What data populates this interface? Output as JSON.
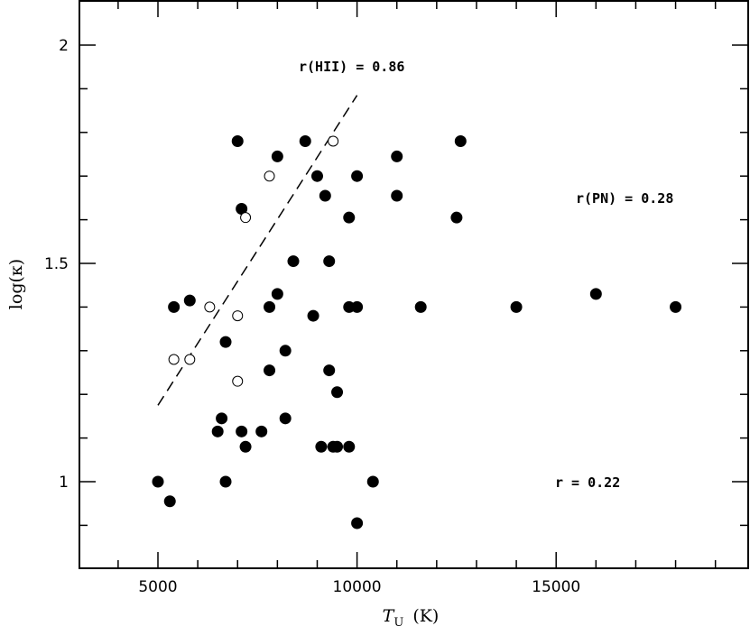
{
  "chart_data": {
    "type": "scatter",
    "xlabel_main": "T",
    "xlabel_sub": "U",
    "xlabel_unit": "(K)",
    "ylabel": "log(κ)",
    "xlim": [
      3000,
      20000
    ],
    "ylim": [
      0.8,
      2.1
    ],
    "x_ticks": [
      {
        "value": 5000,
        "label": "5000"
      },
      {
        "value": 10000,
        "label": "10000"
      },
      {
        "value": 15000,
        "label": "15000"
      }
    ],
    "y_ticks": [
      {
        "value": 1,
        "label": "1"
      },
      {
        "value": 1.5,
        "label": "1.5"
      },
      {
        "value": 2,
        "label": "2"
      }
    ],
    "annotations": {
      "r_hii": "r(HII) = 0.86",
      "r_pn": "r(PN) = 0.28",
      "r_all": "r = 0.22"
    },
    "fit_line": {
      "style": "dashed",
      "x": [
        5000,
        10000
      ],
      "y": [
        1.175,
        1.885
      ]
    },
    "series": [
      {
        "marker": "filled-circle",
        "points": [
          [
            5000,
            1.0
          ],
          [
            5300,
            0.955
          ],
          [
            5400,
            1.4
          ],
          [
            5800,
            1.415
          ],
          [
            6500,
            1.115
          ],
          [
            6600,
            1.145
          ],
          [
            6700,
            1.0
          ],
          [
            6700,
            1.32
          ],
          [
            7000,
            1.78
          ],
          [
            7100,
            1.625
          ],
          [
            7100,
            1.115
          ],
          [
            7200,
            1.08
          ],
          [
            7600,
            1.115
          ],
          [
            7800,
            1.4
          ],
          [
            7800,
            1.255
          ],
          [
            8000,
            1.745
          ],
          [
            8000,
            1.43
          ],
          [
            8200,
            1.3
          ],
          [
            8200,
            1.145
          ],
          [
            8400,
            1.505
          ],
          [
            8700,
            1.78
          ],
          [
            8900,
            1.38
          ],
          [
            9000,
            1.7
          ],
          [
            9100,
            1.08
          ],
          [
            9200,
            1.655
          ],
          [
            9300,
            1.505
          ],
          [
            9300,
            1.255
          ],
          [
            9400,
            1.08
          ],
          [
            9500,
            1.08
          ],
          [
            9500,
            1.205
          ],
          [
            9800,
            1.605
          ],
          [
            9800,
            1.4
          ],
          [
            9800,
            1.08
          ],
          [
            10000,
            1.7
          ],
          [
            10000,
            1.4
          ],
          [
            10000,
            0.905
          ],
          [
            10400,
            1.0
          ],
          [
            11000,
            1.745
          ],
          [
            11000,
            1.655
          ],
          [
            11600,
            1.4
          ],
          [
            12500,
            1.605
          ],
          [
            12600,
            1.78
          ],
          [
            14000,
            1.4
          ],
          [
            16000,
            1.43
          ],
          [
            18000,
            1.4
          ]
        ]
      },
      {
        "marker": "open-circle",
        "points": [
          [
            5400,
            1.28
          ],
          [
            5800,
            1.28
          ],
          [
            6300,
            1.4
          ],
          [
            7000,
            1.38
          ],
          [
            7000,
            1.23
          ],
          [
            7200,
            1.605
          ],
          [
            7800,
            1.7
          ],
          [
            9400,
            1.78
          ]
        ]
      }
    ],
    "grid": false,
    "legend": "none"
  }
}
